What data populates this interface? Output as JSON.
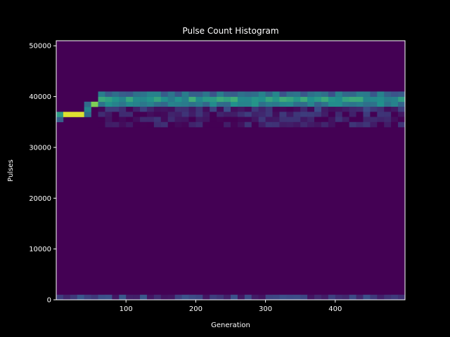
{
  "chart_data": {
    "type": "heatmap",
    "title": "Pulse Count Histogram",
    "xlabel": "Generation",
    "ylabel": "Pulses",
    "xlim": [
      0,
      500
    ],
    "ylim": [
      0,
      51000
    ],
    "x_ticks": [
      100,
      200,
      300,
      400
    ],
    "y_ticks": [
      0,
      10000,
      20000,
      30000,
      40000,
      50000
    ],
    "x_bin_width": 10,
    "y_bin_width": 1000,
    "colormap": "viridis",
    "background_value": "#440154",
    "grid": false,
    "bands": [
      {
        "from_x": 0,
        "to_x": 500,
        "y": 0,
        "v": 0.16
      },
      {
        "from_x": 0,
        "to_x": 10,
        "y": 35000,
        "v": 0.3
      },
      {
        "from_x": 0,
        "to_x": 10,
        "y": 36000,
        "v": 0.55
      },
      {
        "from_x": 10,
        "to_x": 40,
        "y": 36000,
        "v": 0.95
      },
      {
        "from_x": 40,
        "to_x": 50,
        "y": 36000,
        "v": 0.35
      },
      {
        "from_x": 40,
        "to_x": 50,
        "y": 37000,
        "v": 0.45
      },
      {
        "from_x": 40,
        "to_x": 50,
        "y": 38000,
        "v": 0.35
      },
      {
        "from_x": 50,
        "to_x": 60,
        "y": 38000,
        "v": 0.8
      },
      {
        "from_x": 60,
        "to_x": 500,
        "y": 38000,
        "v": 0.42
      },
      {
        "from_x": 60,
        "to_x": 500,
        "y": 39000,
        "v": 0.52
      },
      {
        "from_x": 60,
        "to_x": 500,
        "y": 40000,
        "v": 0.35
      },
      {
        "from_x": 60,
        "to_x": 500,
        "y": 37000,
        "v": 0.12
      },
      {
        "from_x": 60,
        "to_x": 500,
        "y": 36000,
        "v": 0.08
      },
      {
        "from_x": 60,
        "to_x": 500,
        "y": 35000,
        "v": 0.06
      },
      {
        "from_x": 60,
        "to_x": 500,
        "y": 34000,
        "v": 0.05
      }
    ]
  }
}
